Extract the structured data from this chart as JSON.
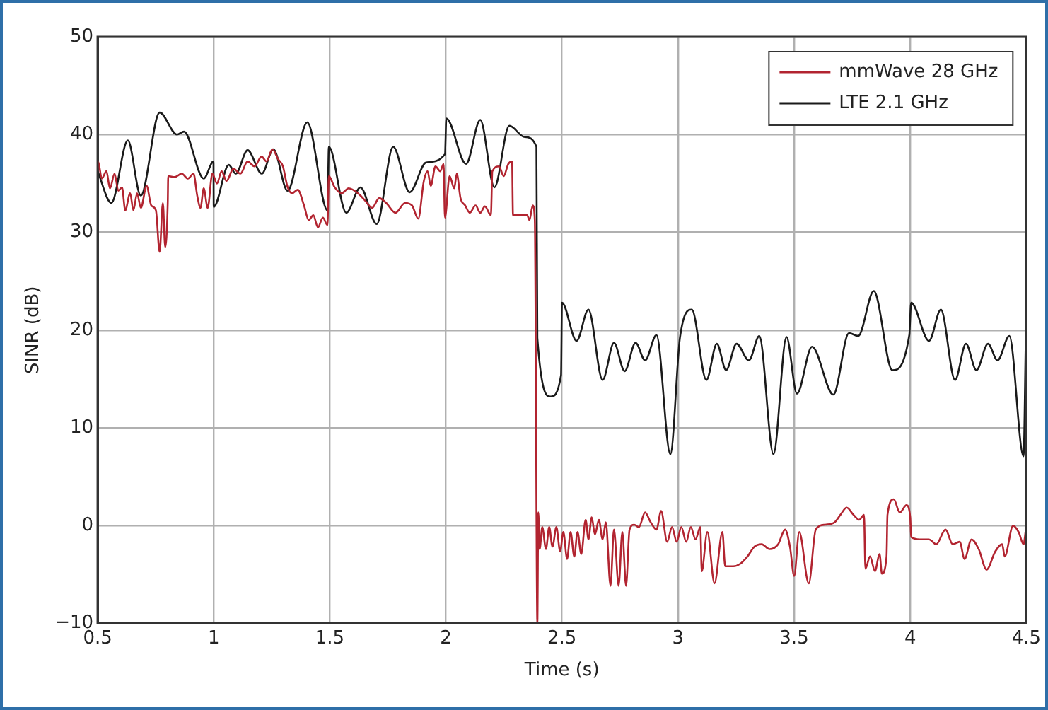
{
  "chart_data": {
    "type": "line",
    "xlabel": "Time (s)",
    "ylabel": "SINR (dB)",
    "xlim": [
      0.5,
      4.5
    ],
    "xticks": [
      0.5,
      1,
      1.5,
      2,
      2.5,
      3,
      3.5,
      4,
      4.5
    ],
    "ylim": [
      -10,
      50
    ],
    "yticks": [
      {
        "value": -10,
        "label": "−10"
      },
      0,
      10,
      20,
      30,
      40,
      50
    ],
    "grid": true,
    "legend": "top right",
    "marker": "none",
    "line_style": "solid",
    "series": [
      {
        "name": "mmWave 28 GHz",
        "color": "#b22430",
        "x": [
          0.5,
          0.502,
          0.518,
          0.538,
          0.553,
          0.573,
          0.589,
          0.605,
          0.619,
          0.64,
          0.654,
          0.67,
          0.686,
          0.711,
          0.731,
          0.751,
          0.767,
          0.781,
          0.791,
          0.802,
          0.804,
          0.832,
          0.862,
          0.889,
          0.913,
          0.929,
          0.943,
          0.957,
          0.974,
          0.994,
          1.014,
          1.034,
          1.055,
          1.085,
          1.115,
          1.146,
          1.176,
          1.206,
          1.227,
          1.253,
          1.277,
          1.298,
          1.318,
          1.338,
          1.362,
          1.389,
          1.409,
          1.429,
          1.449,
          1.47,
          1.49,
          1.496,
          1.52,
          1.551,
          1.581,
          1.621,
          1.652,
          1.682,
          1.713,
          1.743,
          1.783,
          1.824,
          1.854,
          1.881,
          1.905,
          1.921,
          1.935,
          1.955,
          1.976,
          1.99,
          1.996,
          2.016,
          2.036,
          2.047,
          2.063,
          2.083,
          2.103,
          2.128,
          2.148,
          2.168,
          2.194,
          2.2,
          2.229,
          2.249,
          2.269,
          2.285,
          2.289,
          2.35,
          2.36,
          2.374,
          2.383,
          2.394,
          2.398,
          2.404,
          2.415,
          2.431,
          2.445,
          2.459,
          2.476,
          2.492,
          2.506,
          2.522,
          2.537,
          2.553,
          2.567,
          2.583,
          2.602,
          2.614,
          2.628,
          2.642,
          2.659,
          2.675,
          2.689,
          2.709,
          2.724,
          2.744,
          2.76,
          2.776,
          2.791,
          2.811,
          2.831,
          2.858,
          2.882,
          2.907,
          2.927,
          2.953,
          2.974,
          2.994,
          3.014,
          3.035,
          3.055,
          3.075,
          3.096,
          3.102,
          3.126,
          3.157,
          3.191,
          3.203,
          3.238,
          3.268,
          3.299,
          3.329,
          3.36,
          3.394,
          3.431,
          3.461,
          3.482,
          3.5,
          3.522,
          3.563,
          3.593,
          3.634,
          3.675,
          3.699,
          3.726,
          3.756,
          3.78,
          3.801,
          3.807,
          3.827,
          3.848,
          3.868,
          3.878,
          3.898,
          3.902,
          3.929,
          3.955,
          3.984,
          4,
          4.004,
          4.041,
          4.081,
          4.112,
          4.152,
          4.183,
          4.213,
          4.234,
          4.264,
          4.295,
          4.329,
          4.366,
          4.396,
          4.407,
          4.443,
          4.467,
          4.488,
          4.498
        ],
        "values": [
          36.25,
          37.25,
          35.5,
          36.25,
          34.5,
          36,
          34.25,
          34.6,
          32.25,
          34,
          32.25,
          34,
          32.5,
          34.75,
          32.75,
          32.25,
          28,
          33,
          28.5,
          33,
          35.75,
          35.65,
          36,
          35.5,
          36,
          33.75,
          32.5,
          34.5,
          32.5,
          36,
          35,
          36.25,
          35.25,
          36.5,
          36,
          37.25,
          36.75,
          37.75,
          37.25,
          38.5,
          37.5,
          36.75,
          34.65,
          34,
          34.35,
          32.75,
          31.25,
          31.75,
          30.5,
          31.5,
          30.75,
          35.75,
          34.65,
          34,
          34.5,
          34,
          33.25,
          32.5,
          33.5,
          33,
          32,
          33,
          32.75,
          31.4,
          35.25,
          36.25,
          34.75,
          36.75,
          36.25,
          37,
          31.5,
          35.75,
          34.5,
          36,
          33.5,
          32.75,
          32,
          32.75,
          32,
          32.65,
          31.75,
          36.25,
          36.75,
          35.75,
          37,
          37.25,
          31.75,
          31.75,
          31.25,
          32.75,
          31.25,
          -10,
          1.35,
          -2.4,
          -0.15,
          -2.4,
          -0.15,
          -2.15,
          -0.15,
          -2.65,
          -0.65,
          -3.4,
          -0.65,
          -3.15,
          -0.65,
          -2.9,
          0.6,
          -1.4,
          0.85,
          -0.9,
          0.6,
          -1.4,
          0.35,
          -6.15,
          -0.4,
          -6.15,
          -0.65,
          -6.15,
          -0.4,
          0.1,
          -0.15,
          1.35,
          0.35,
          -0.4,
          1.5,
          -1.65,
          -0.15,
          -1.65,
          -0.15,
          -1.65,
          -0.15,
          -1.4,
          -0.15,
          -4.65,
          -0.65,
          -5.9,
          -0.65,
          -4.15,
          -4.15,
          -3.9,
          -3.15,
          -2.15,
          -1.9,
          -2.4,
          -1.9,
          -0.4,
          -2.15,
          -5.15,
          -0.65,
          -5.9,
          -0.4,
          0.1,
          0.35,
          1.1,
          1.85,
          1.1,
          0.6,
          1.1,
          -4.4,
          -3.15,
          -4.65,
          -2.9,
          -4.9,
          -3.15,
          1.1,
          2.7,
          1.35,
          2.1,
          0.85,
          -1.15,
          -1.4,
          -1.4,
          -1.9,
          -0.4,
          -1.9,
          -1.65,
          -3.4,
          -1.4,
          -2.4,
          -4.5,
          -2.65,
          -1.9,
          -3.15,
          0,
          -0.65,
          -1.9,
          -0.4
        ]
      },
      {
        "name": "LTE 2.1 GHz",
        "color": "#1a1a1a",
        "x": [
          0.5,
          0.559,
          0.63,
          0.686,
          0.767,
          0.842,
          0.872,
          0.957,
          0.999,
          1.0,
          1.065,
          1.095,
          1.146,
          1.207,
          1.257,
          1.318,
          1.403,
          1.49,
          1.496,
          1.571,
          1.632,
          1.702,
          1.773,
          1.844,
          1.915,
          1.996,
          2.002,
          2.087,
          2.148,
          2.209,
          2.273,
          2.34,
          2.39,
          2.394,
          2.451,
          2.496,
          2.5,
          2.563,
          2.614,
          2.675,
          2.724,
          2.77,
          2.817,
          2.858,
          2.907,
          2.967,
          3.008,
          3.059,
          3.122,
          3.167,
          3.207,
          3.252,
          3.305,
          3.35,
          3.411,
          3.467,
          3.512,
          3.577,
          3.669,
          3.736,
          3.776,
          3.843,
          3.923,
          3.996,
          4.004,
          4.081,
          4.132,
          4.193,
          4.24,
          4.285,
          4.335,
          4.376,
          4.427,
          4.488,
          4.498
        ],
        "values": [
          36.25,
          33,
          39.4,
          33.75,
          42.25,
          40,
          40.3,
          35.5,
          37.25,
          32.6,
          36.9,
          36,
          38.4,
          36,
          38.5,
          34.25,
          41.25,
          32.25,
          38.75,
          32,
          34.6,
          30.85,
          38.75,
          34.1,
          37.15,
          38,
          41.65,
          37,
          41.5,
          34.6,
          40.9,
          39.75,
          38.75,
          19.2,
          13.2,
          15.4,
          22.8,
          18.9,
          22.1,
          14.9,
          18.7,
          15.8,
          18.7,
          16.9,
          19.5,
          7.3,
          19.2,
          22.1,
          14.9,
          18.6,
          15.9,
          18.6,
          16.9,
          19.4,
          7.3,
          19.3,
          13.5,
          18.3,
          13.4,
          19.7,
          19.4,
          24,
          15.9,
          19.5,
          22.8,
          18.9,
          22.1,
          14.9,
          18.6,
          15.9,
          18.6,
          16.9,
          19.4,
          7.1,
          19.5
        ]
      }
    ]
  }
}
